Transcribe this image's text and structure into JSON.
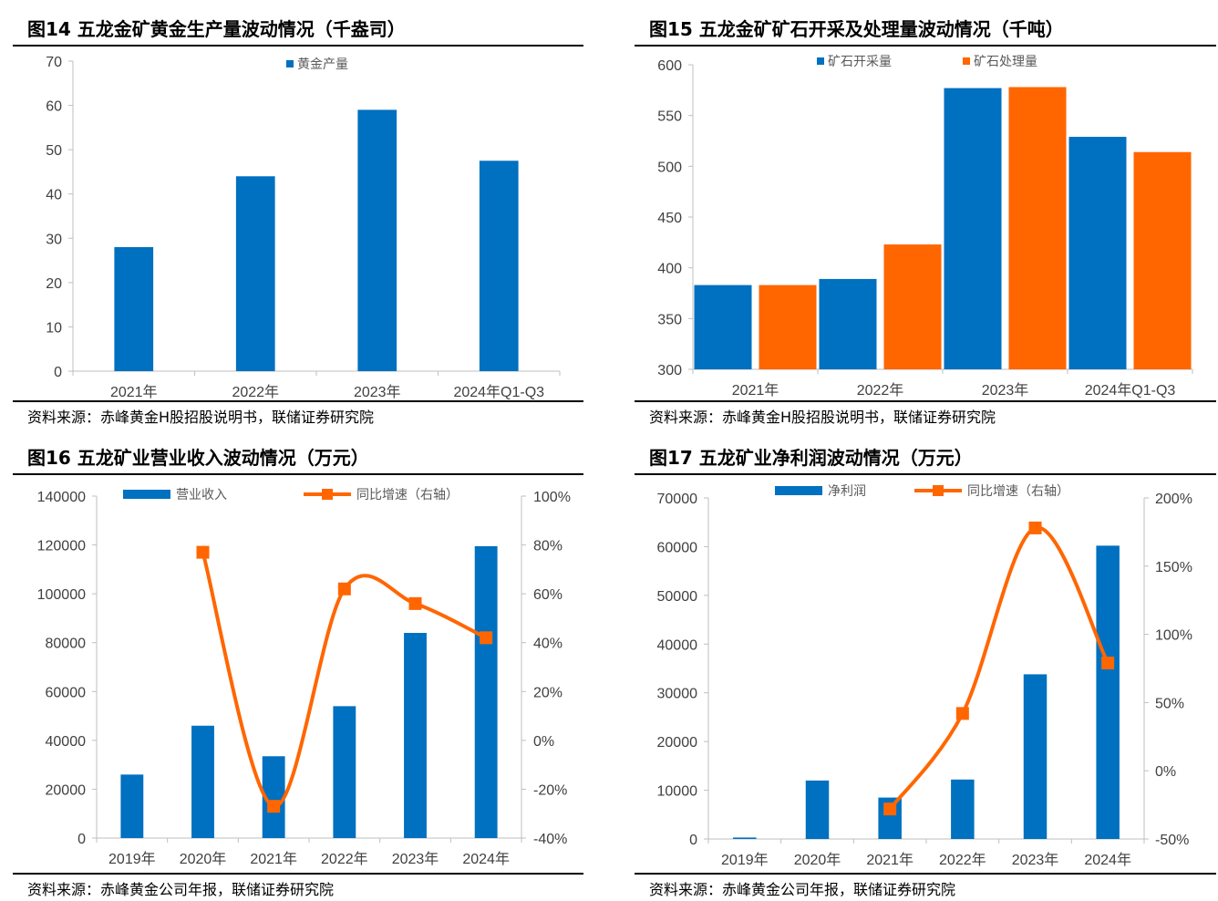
{
  "colors": {
    "blue": "#0070C0",
    "orange": "#FF6600",
    "axis": "#BFBFBF",
    "text": "#404040"
  },
  "charts": [
    {
      "title": "图14 五龙金矿黄金生产量波动情况（千盎司）",
      "source": "资料来源：赤峰黄金H股招股说明书，联储证券研究院",
      "chart_data": {
        "type": "bar",
        "categories": [
          "2021年",
          "2022年",
          "2023年",
          "2024年Q1-Q3"
        ],
        "series": [
          {
            "name": "黄金产量",
            "values": [
              28,
              44,
              59,
              47.5
            ],
            "color": "#0070C0"
          }
        ],
        "ylim": [
          0,
          70
        ],
        "yticks": [
          "0",
          "10",
          "20",
          "30",
          "40",
          "50",
          "60",
          "70"
        ],
        "legend": "top-center"
      }
    },
    {
      "title": "图15 五龙金矿矿石开采及处理量波动情况（千吨）",
      "source": "资料来源：赤峰黄金H股招股说明书，联储证券研究院",
      "chart_data": {
        "type": "bar",
        "categories": [
          "2021年",
          "2022年",
          "2023年",
          "2024年Q1-Q3"
        ],
        "series": [
          {
            "name": "矿石开采量",
            "values": [
              383,
              389,
              577,
              529
            ],
            "color": "#0070C0"
          },
          {
            "name": "矿石处理量",
            "values": [
              383,
              423,
              578,
              514
            ],
            "color": "#FF6600"
          }
        ],
        "ylim": [
          300,
          600
        ],
        "yticks": [
          "300",
          "350",
          "400",
          "450",
          "500",
          "550",
          "600"
        ],
        "legend": "top-center"
      }
    },
    {
      "title": "图16 五龙矿业营业收入波动情况（万元）",
      "source": "资料来源：赤峰黄金公司年报，联储证券研究院",
      "chart_data": {
        "type": "bar",
        "categories": [
          "2019年",
          "2020年",
          "2021年",
          "2022年",
          "2023年",
          "2024年"
        ],
        "series": [
          {
            "name": "营业收入",
            "values": [
              26000,
              46000,
              33500,
              54000,
              84000,
              119500
            ],
            "color": "#0070C0",
            "axis": "left"
          },
          {
            "name": "同比增速（右轴）",
            "values": [
              null,
              77,
              -27,
              62,
              56,
              42
            ],
            "color": "#FF6600",
            "axis": "right",
            "type": "line"
          }
        ],
        "ylim": [
          0,
          140000
        ],
        "yticks": [
          "0",
          "20000",
          "40000",
          "60000",
          "80000",
          "100000",
          "120000",
          "140000"
        ],
        "y2lim": [
          -40,
          100
        ],
        "y2ticks": [
          "-40%",
          "-20%",
          "0%",
          "20%",
          "40%",
          "60%",
          "80%",
          "100%"
        ],
        "legend": "top-center"
      }
    },
    {
      "title": "图17 五龙矿业净利润波动情况（万元）",
      "source": "资料来源：赤峰黄金公司年报，联储证券研究院",
      "chart_data": {
        "type": "bar",
        "categories": [
          "2019年",
          "2020年",
          "2021年",
          "2022年",
          "2023年",
          "2024年"
        ],
        "series": [
          {
            "name": "净利润",
            "values": [
              300,
              12000,
              8500,
              12200,
              33800,
              60200
            ],
            "color": "#0070C0",
            "axis": "left"
          },
          {
            "name": "同比增速（右轴）",
            "values": [
              null,
              null,
              -28,
              42,
              178,
              79
            ],
            "color": "#FF6600",
            "axis": "right",
            "type": "line"
          }
        ],
        "ylim": [
          0,
          70000
        ],
        "yticks": [
          "0",
          "10000",
          "20000",
          "30000",
          "40000",
          "50000",
          "60000",
          "70000"
        ],
        "y2lim": [
          -50,
          200
        ],
        "y2ticks": [
          "-50%",
          "0%",
          "50%",
          "100%",
          "150%",
          "200%"
        ],
        "legend": "top-center"
      }
    }
  ]
}
